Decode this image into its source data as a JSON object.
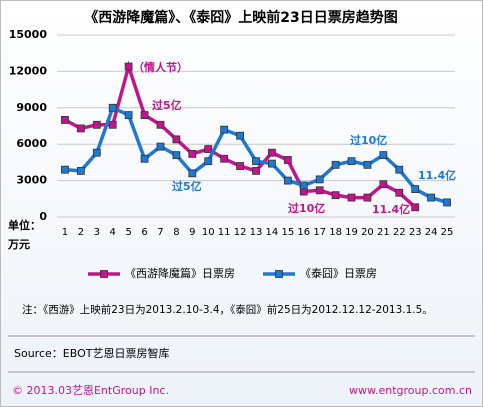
{
  "chart_data": {
    "type": "line",
    "title": "《西游降魔篇》、《泰囧》上映前23日日票房趋势图",
    "ylabel_lines": [
      "单位：",
      "万元"
    ],
    "categories": [
      "1",
      "2",
      "3",
      "4",
      "5",
      "6",
      "7",
      "8",
      "9",
      "10",
      "11",
      "12",
      "13",
      "14",
      "15",
      "16",
      "17",
      "18",
      "19",
      "20",
      "21",
      "22",
      "23",
      "24",
      "25"
    ],
    "series": [
      {
        "name": "《西游降魔篇》日票房",
        "color": "#c0168c",
        "values": [
          8000,
          7300,
          7600,
          7600,
          12400,
          8400,
          7600,
          6400,
          5200,
          5600,
          4800,
          4200,
          3800,
          5300,
          4700,
          2100,
          2200,
          1800,
          1600,
          1600,
          2700,
          2000,
          800,
          null,
          null
        ]
      },
      {
        "name": "《泰囧》日票房",
        "color": "#1f78d1",
        "values": [
          3900,
          3800,
          5300,
          9000,
          8400,
          4800,
          5800,
          5100,
          3600,
          4600,
          7200,
          6700,
          4600,
          4400,
          3000,
          2600,
          3100,
          4300,
          4600,
          4300,
          5100,
          3900,
          2300,
          1600,
          1200
        ]
      }
    ],
    "ylim": [
      0,
      15000
    ],
    "yticks": [
      0,
      3000,
      6000,
      9000,
      12000,
      15000
    ],
    "grid": true,
    "annotations": [
      {
        "text": "（情人节）",
        "series": 0
      },
      {
        "text": "过5亿",
        "series": 0
      },
      {
        "text": "过5亿",
        "series": 1
      },
      {
        "text": "过10亿",
        "series": 1
      },
      {
        "text": "过10亿",
        "series": 0
      },
      {
        "text": "11.4亿",
        "series": 0
      },
      {
        "text": "11.4亿",
        "series": 1
      }
    ]
  },
  "note": "注：《西游》上映前23日为2013.2.10-3.4，《泰囧》前25日为2012.12.12-2013.1.5。",
  "source": "Source：EBOT艺恩日票房智库",
  "copyright": "© 2013.03艺恩EntGroup Inc.",
  "website": "www.entgroup.com.cn"
}
